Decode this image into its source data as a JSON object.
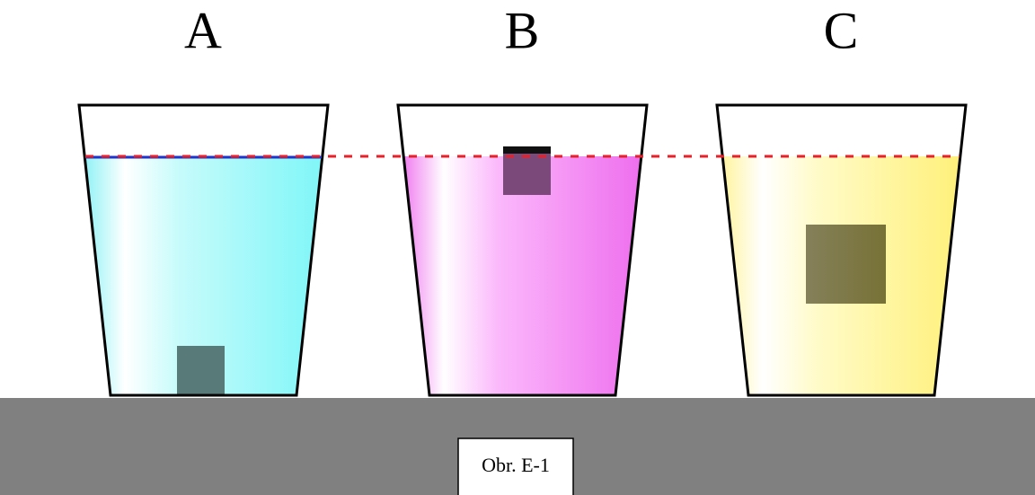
{
  "cups": [
    "A",
    "B",
    "C"
  ],
  "caption": "Obr. E-1"
}
